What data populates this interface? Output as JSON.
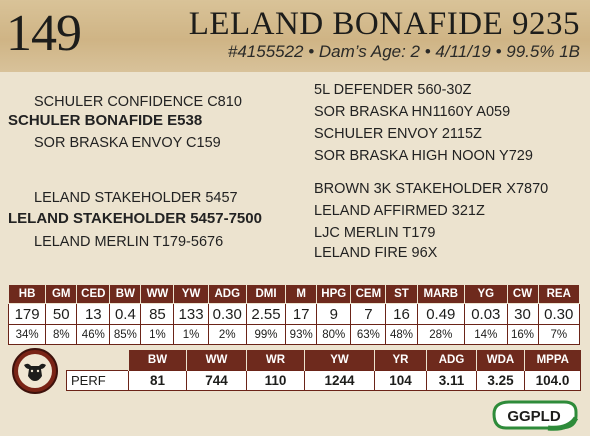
{
  "header": {
    "lot_number": "149",
    "animal_name": "LELAND BONAFIDE 9235",
    "details": "#4155522 • Dam’s Age: 2 • 4/11/19 • 99.5% 1B"
  },
  "pedigree": {
    "sire_side": {
      "paternal_grandsire": "SCHULER CONFIDENCE C810",
      "sire": "SCHULER BONAFIDE E538",
      "paternal_granddam": "SOR BRASKA ENVOY C159"
    },
    "dam_side": {
      "maternal_grandsire": "LELAND STAKEHOLDER 5457",
      "dam": "LELAND STAKEHOLDER 5457-7500",
      "maternal_granddam": "LELAND MERLIN T179-5676"
    },
    "right_column": [
      "5L DEFENDER 560-30Z",
      "SOR BRASKA HN1160Y A059",
      "SCHULER ENVOY 2115Z",
      "SOR BRASKA HIGH NOON Y729",
      "BROWN 3K STAKEHOLDER X7870",
      "LELAND AFFIRMED 321Z",
      "LJC MERLIN T179",
      "LELAND FIRE 96X"
    ]
  },
  "epd": {
    "headers": [
      "HB",
      "GM",
      "CED",
      "BW",
      "WW",
      "YW",
      "ADG",
      "DMI",
      "M",
      "HPG",
      "CEM",
      "ST",
      "MARB",
      "YG",
      "CW",
      "REA"
    ],
    "values": [
      "179",
      "50",
      "13",
      "0.4",
      "85",
      "133",
      "0.30",
      "2.55",
      "17",
      "9",
      "7",
      "16",
      "0.49",
      "0.03",
      "30",
      "0.30"
    ],
    "percentiles": [
      "34%",
      "8%",
      "46%",
      "85%",
      "1%",
      "1%",
      "2%",
      "99%",
      "93%",
      "80%",
      "63%",
      "48%",
      "28%",
      "14%",
      "16%",
      "7%"
    ]
  },
  "performance": {
    "headers": [
      "BW",
      "WW",
      "WR",
      "YW",
      "YR",
      "ADG",
      "WDA",
      "MPPA"
    ],
    "row_label": "PERF",
    "values": [
      "81",
      "744",
      "110",
      "1244",
      "104",
      "3.11",
      "3.25",
      "104.0"
    ]
  },
  "logos": {
    "seal": "angus-bull-seal",
    "ggp": "GGPLD"
  },
  "colors": {
    "header_band": "#cfb485",
    "table_header": "#6e2a1d",
    "background": "#ece3cf",
    "ggp_green": "#2e8b3a"
  }
}
